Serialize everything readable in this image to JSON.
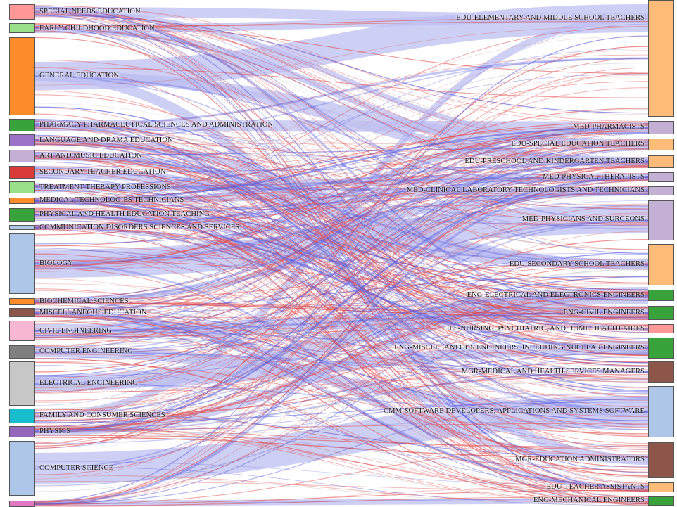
{
  "colors": {
    "major_flow_light": "#bdbff2",
    "major_flow_blue": "#5a5fe0",
    "major_flow_red": "#e24b4b",
    "major_flow_gray": "#c9c9c9"
  },
  "left_nodes": [
    {
      "label": "SPECIAL NEEDS EDUCATION",
      "color": "#ff9896"
    },
    {
      "label": "EARLY CHILDHOOD EDUCATION",
      "color": "#98df8a"
    },
    {
      "label": "GENERAL EDUCATION",
      "color": "#ff8c2a"
    },
    {
      "label": "PHARMACY PHARMACEUTICAL SCIENCES AND ADMINISTRATION",
      "color": "#38a33a"
    },
    {
      "label": "LANGUAGE AND DRAMA EDUCATION",
      "color": "#9a72c8"
    },
    {
      "label": "ART AND MUSIC EDUCATION",
      "color": "#c5b0d5"
    },
    {
      "label": "SECONDARY TEACHER EDUCATION",
      "color": "#d93a3a"
    },
    {
      "label": "TREATMENT THERAPY PROFESSIONS",
      "color": "#98df8a"
    },
    {
      "label": "MEDICAL TECHNOLOGIES TECHNICIANS",
      "color": "#ff8c2a"
    },
    {
      "label": "PHYSICAL AND HEALTH EDUCATION TEACHING",
      "color": "#38a33a"
    },
    {
      "label": "COMMUNICATION DISORDERS SCIENCES AND SERVICES",
      "color": "#aec7e8"
    },
    {
      "label": "BIOLOGY",
      "color": "#aec7e8"
    },
    {
      "label": "BIOCHEMICAL SCIENCES",
      "color": "#ff8c2a"
    },
    {
      "label": "MISCELLANEOUS EDUCATION",
      "color": "#8c564b"
    },
    {
      "label": "CIVIL ENGINEERING",
      "color": "#f7b6d2"
    },
    {
      "label": "COMPUTER ENGINEERING",
      "color": "#7f7f7f"
    },
    {
      "label": "ELECTRICAL ENGINEERING",
      "color": "#c7c7c7"
    },
    {
      "label": "FAMILY AND CONSUMER SCIENCES",
      "color": "#17becf"
    },
    {
      "label": "PHYSICS",
      "color": "#9467bd"
    },
    {
      "label": "COMPUTER SCIENCE",
      "color": "#aec7e8"
    },
    {
      "label": "",
      "color": "#e377c2"
    }
  ],
  "right_nodes": [
    {
      "label": "EDU-ELEMENTARY AND MIDDLE SCHOOL TEACHERS",
      "color": "#ffbb78"
    },
    {
      "label": "MED-PHARMACISTS",
      "color": "#c5b0d5"
    },
    {
      "label": "EDU-SPECIAL EDUCATION TEACHERS",
      "color": "#ffbb78"
    },
    {
      "label": "EDU-PRESCHOOL AND KINDERGARTEN TEACHERS",
      "color": "#ffbb78"
    },
    {
      "label": "MED-PHYSICAL THERAPISTS",
      "color": "#c5b0d5"
    },
    {
      "label": "MED-CLINICAL LABORATORY TECHNOLOGISTS AND TECHNICIANS",
      "color": "#c5b0d5"
    },
    {
      "label": "MED-PHYSICIANS AND SURGEONS",
      "color": "#c5b0d5"
    },
    {
      "label": "EDU-SECONDARY SCHOOL TEACHERS",
      "color": "#ffbb78"
    },
    {
      "label": "ENG-ELECTRICAL AND ELECTRONICS ENGINEERS",
      "color": "#38a33a"
    },
    {
      "label": "ENG-CIVIL ENGINEERS",
      "color": "#38a33a"
    },
    {
      "label": "HLS-NURSING, PSYCHIATRIC, AND HOME HEALTH AIDES",
      "color": "#ff9896"
    },
    {
      "label": "ENG-MISCELLANEOUS ENGINEERS, INCLUDING NUCLEAR ENGINEERS",
      "color": "#38a33a"
    },
    {
      "label": "MGR-MEDICAL AND HEALTH SERVICES MANAGERS",
      "color": "#8c564b"
    },
    {
      "label": "CMM-SOFTWARE DEVELOPERS, APPLICATIONS AND SYSTEMS SOFTWARE",
      "color": "#aec7e8"
    },
    {
      "label": "MGR-EDUCATION ADMINISTRATORS",
      "color": "#8c564b"
    },
    {
      "label": "EDU-TEACHER ASSISTANTS",
      "color": "#ffbb78"
    },
    {
      "label": "ENG-MECHANICAL ENGINEERS",
      "color": "#38a33a"
    }
  ]
}
